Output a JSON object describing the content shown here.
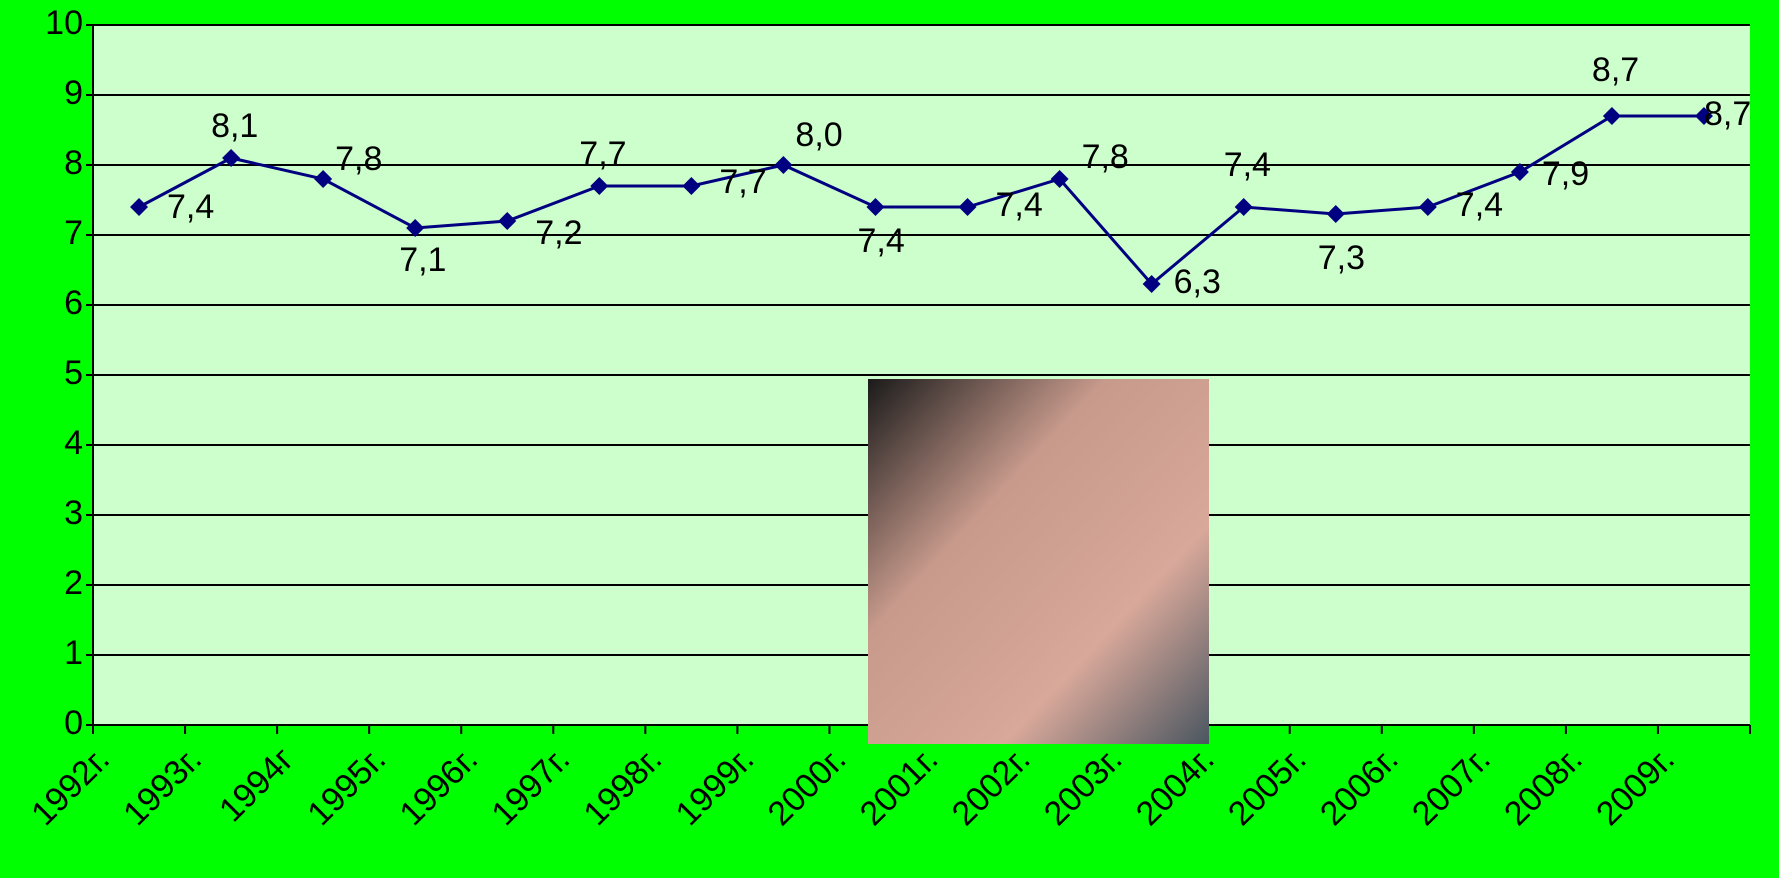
{
  "chart_data": {
    "type": "line",
    "categories": [
      "1992г.",
      "1993г.",
      "1994г",
      "1995г.",
      "1996г.",
      "1997г.",
      "1998г.",
      "1999г.",
      "2000г.",
      "2001г.",
      "2002г.",
      "2003г.",
      "2004г.",
      "2005г.",
      "2006г.",
      "2007г.",
      "2008г.",
      "2009г."
    ],
    "series": [
      {
        "color": "#000080",
        "values": [
          7.4,
          8.1,
          7.8,
          7.1,
          7.2,
          7.7,
          7.7,
          8.0,
          7.4,
          7.4,
          7.8,
          6.3,
          7.4,
          7.3,
          7.4,
          7.9,
          8.7,
          8.7
        ],
        "value_labels": [
          "7,4",
          "8,1",
          "7,8",
          "7,1",
          "7,2",
          "7,7",
          "7,7",
          "8,0",
          "7,4",
          "7,4",
          "7,8",
          "6,3",
          "7,4",
          "7,3",
          "7,4",
          "7,9",
          "8,7",
          "8,7"
        ]
      }
    ],
    "ylim": [
      0,
      10
    ],
    "yticks": [
      0,
      1,
      2,
      3,
      4,
      5,
      6,
      7,
      8,
      9,
      10
    ],
    "grid": true
  }
}
